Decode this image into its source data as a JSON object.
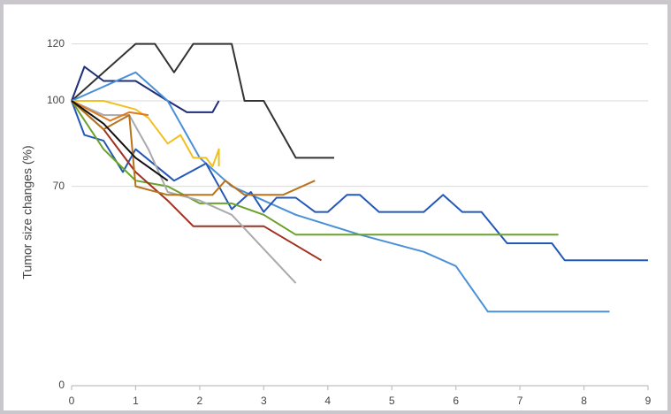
{
  "chart_data": {
    "type": "line",
    "y_label": "Tumor size changes (%)",
    "xlim": [
      0,
      9
    ],
    "xticks": [
      0,
      1,
      2,
      3,
      4,
      5,
      6,
      7,
      8,
      9
    ],
    "ylim": [
      0,
      125
    ],
    "yticks": [
      0,
      70,
      100,
      120
    ],
    "grid": true,
    "series": [
      {
        "color": "#333333",
        "x": [
          0,
          0.5,
          1,
          1.3,
          1.6,
          1.9,
          2.5,
          2.7,
          3,
          3.5,
          4.1
        ],
        "y": [
          100,
          110,
          120,
          120,
          110,
          120,
          120,
          100,
          100,
          80,
          80
        ]
      },
      {
        "color": "#1f2f7a",
        "x": [
          0,
          0.2,
          0.5,
          1,
          1.5,
          1.8,
          2.2,
          2.3
        ],
        "y": [
          100,
          112,
          107,
          107,
          100,
          96,
          96,
          100
        ]
      },
      {
        "color": "#4a90d9",
        "x": [
          0,
          1,
          1.5,
          2,
          2.5,
          3,
          3.5,
          4.5,
          5.5,
          6,
          6.5,
          8.4
        ],
        "y": [
          100,
          110,
          100,
          80,
          70,
          65,
          60,
          53,
          47,
          42,
          26,
          26
        ]
      },
      {
        "color": "#2458b8",
        "x": [
          0,
          0.2,
          0.5,
          0.8,
          1,
          1.6,
          2.1,
          2.5,
          2.8,
          3,
          3.2,
          3.5,
          3.8,
          4,
          4.3,
          4.5,
          4.8,
          5.5,
          5.8,
          6.1,
          6.4,
          6.8,
          7.5,
          7.7,
          9
        ],
        "y": [
          100,
          88,
          86,
          75,
          83,
          72,
          78,
          62,
          68,
          61,
          66,
          66,
          61,
          61,
          67,
          67,
          61,
          61,
          67,
          61,
          61,
          50,
          50,
          44,
          44
        ]
      },
      {
        "color": "#6aa22c",
        "x": [
          0,
          0.5,
          1,
          1.5,
          2,
          2.5,
          3,
          3.5,
          7.6
        ],
        "y": [
          100,
          83,
          72,
          70,
          64,
          64,
          60,
          53,
          53
        ]
      },
      {
        "color": "#a03020",
        "x": [
          0,
          0.5,
          1,
          1.5,
          1.9,
          3,
          3.9
        ],
        "y": [
          100,
          90,
          75,
          65,
          56,
          56,
          44
        ]
      },
      {
        "color": "#aaaaaa",
        "x": [
          0,
          0.5,
          0.9,
          1.2,
          1.5,
          2,
          2.5,
          3,
          3.5
        ],
        "y": [
          100,
          95,
          95,
          83,
          68,
          65,
          60,
          48,
          36
        ]
      },
      {
        "color": "#b8731c",
        "x": [
          0,
          0.5,
          0.9,
          1,
          1.5,
          2.2,
          2.4,
          2.7,
          3.3,
          3.8
        ],
        "y": [
          100,
          90,
          95,
          70,
          67,
          67,
          72,
          67,
          67,
          72
        ]
      },
      {
        "color": "#f0c020",
        "x": [
          0,
          0.5,
          1,
          1.2,
          1.5,
          1.7,
          1.9,
          2.1,
          2.2,
          2.3,
          2.3
        ],
        "y": [
          100,
          100,
          97,
          94,
          85,
          88,
          80,
          80,
          77,
          83,
          77
        ]
      },
      {
        "color": "#e07a20",
        "x": [
          0,
          0.6,
          0.9,
          1.2
        ],
        "y": [
          100,
          93,
          96,
          95
        ]
      },
      {
        "color": "#111111",
        "x": [
          0,
          0.5,
          1,
          1.5
        ],
        "y": [
          100,
          92,
          80,
          72
        ]
      }
    ]
  }
}
